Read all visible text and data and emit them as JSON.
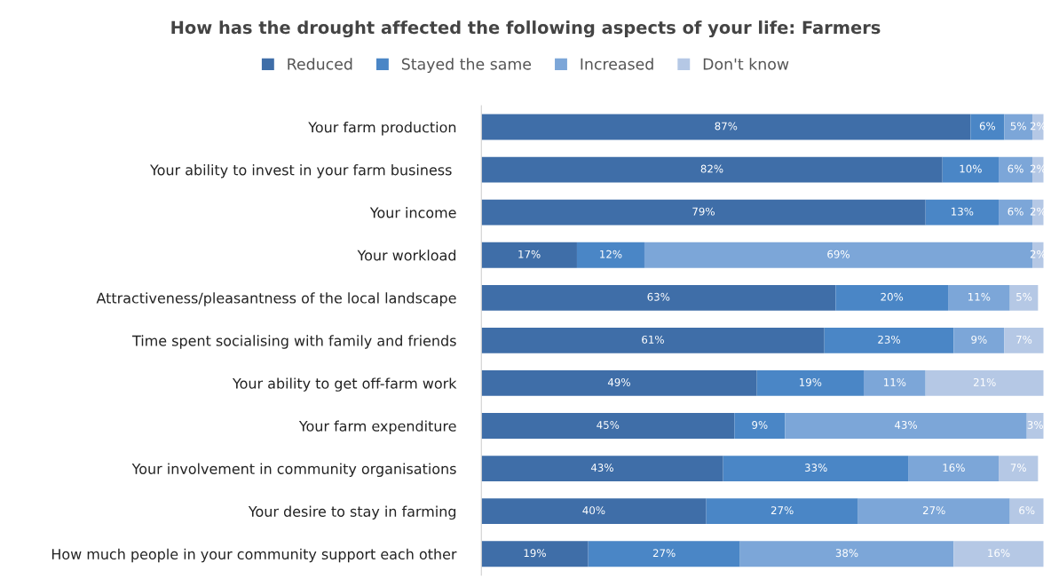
{
  "chart_data": {
    "type": "bar",
    "orientation": "horizontal",
    "stacked": true,
    "title": "How has the drought affected the following aspects of your life: Farmers",
    "categories": [
      "Your farm production",
      "Your ability to invest in your farm business ",
      "Your income",
      "Your workload",
      "Attractiveness/pleasantness of the local landscape",
      "Time spent socialising with family and friends",
      "Your ability to get off-farm work",
      "Your farm expenditure",
      "Your involvement in community organisations",
      "Your desire to stay in farming",
      "How much people in your community support each other"
    ],
    "series": [
      {
        "name": "Reduced",
        "color": "#3f6ea8",
        "values": [
          87,
          82,
          79,
          17,
          63,
          61,
          49,
          45,
          43,
          40,
          19
        ],
        "value_labels": [
          "87%",
          "82%",
          "79%",
          "17%",
          "63%",
          "61%",
          "49%",
          "45%",
          "43%",
          "40%",
          "19%"
        ]
      },
      {
        "name": "Stayed the same",
        "color": "#4a86c6",
        "values": [
          6,
          10,
          13,
          12,
          20,
          23,
          19,
          9,
          33,
          27,
          27
        ],
        "value_labels": [
          "6%",
          "10%",
          "13%",
          "12%",
          "20%",
          "23%",
          "19%",
          "9%",
          "33%",
          "27%",
          "27%"
        ]
      },
      {
        "name": "Increased",
        "color": "#7ca6d8",
        "values": [
          5,
          6,
          6,
          69,
          11,
          9,
          11,
          43,
          16,
          27,
          38
        ],
        "value_labels": [
          "5%",
          "6%",
          "6%",
          "69%",
          "11%",
          "9%",
          "11%",
          "43%",
          "16%",
          "27%",
          "38%"
        ]
      },
      {
        "name": "Don't know",
        "color": "#b5c8e5",
        "values": [
          2,
          2,
          2,
          2,
          5,
          7,
          21,
          3,
          7,
          6,
          16
        ],
        "value_labels": [
          "2%",
          "2%",
          "2%",
          "2%",
          "5%",
          "7%",
          "21%",
          "3%",
          "7%",
          "6%",
          "16%"
        ]
      }
    ],
    "legend": "top"
  }
}
